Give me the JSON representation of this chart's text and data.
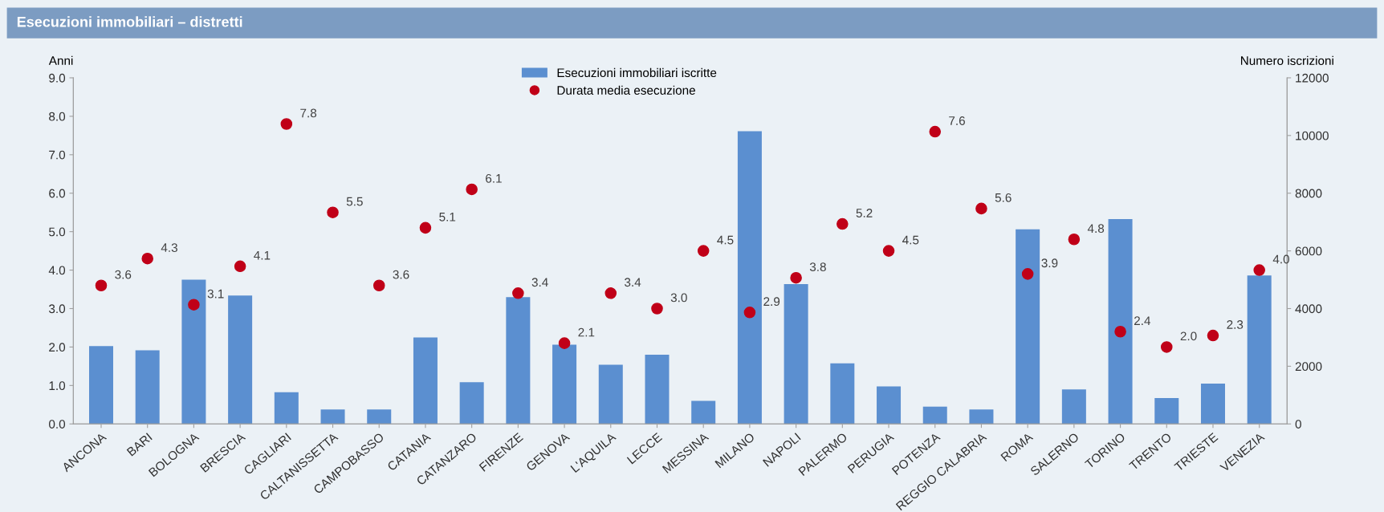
{
  "chart_data": {
    "type": "bar",
    "title": "Esecuzioni immobiliari – distretti",
    "categories": [
      "ANCONA",
      "BARI",
      "BOLOGNA",
      "BRESCIA",
      "CAGLIARI",
      "CALTANISSETTA",
      "CAMPOBASSO",
      "CATANIA",
      "CATANZARO",
      "FIRENZE",
      "GENOVA",
      "L'AQUILA",
      "LECCE",
      "MESSINA",
      "MILANO",
      "NAPOLI",
      "PALERMO",
      "PERUGIA",
      "POTENZA",
      "REGGIO CALABRIA",
      "ROMA",
      "SALERNO",
      "TORINO",
      "TRENTO",
      "TRIESTE",
      "VENEZIA"
    ],
    "series": [
      {
        "name": "Esecuzioni immobiliari iscritte",
        "axis": "y2",
        "color": "#5b8fd0",
        "values": [
          2700,
          2550,
          5000,
          4450,
          1100,
          500,
          500,
          3000,
          1450,
          4400,
          2750,
          2050,
          2400,
          800,
          10150,
          4850,
          2100,
          1300,
          600,
          500,
          6750,
          1200,
          7100,
          900,
          1400,
          5150
        ]
      },
      {
        "name": "Durata media esecuzione",
        "type": "scatter",
        "axis": "y",
        "color": "#c00018",
        "values": [
          3.6,
          4.3,
          3.1,
          4.1,
          7.8,
          5.5,
          3.6,
          5.1,
          6.1,
          3.4,
          2.1,
          3.4,
          3.0,
          4.5,
          2.9,
          3.8,
          5.2,
          4.5,
          7.6,
          5.6,
          3.9,
          4.8,
          2.4,
          2.0,
          2.3,
          4.0
        ],
        "value_labels": [
          "3.6",
          "4.3",
          "3.1",
          "4.1",
          "7.8",
          "5.5",
          "3.6",
          "5.1",
          "6.1",
          "3.4",
          "2.1",
          "3.4",
          "3.0",
          "4.5",
          "2.9",
          "3.8",
          "5.2",
          "4.5",
          "7.6",
          "5.6",
          "3.9",
          "4.8",
          "2.4",
          "2.0",
          "2.3",
          "4.0"
        ]
      }
    ],
    "ylabel": "Anni",
    "y2label": "Numero iscrizioni",
    "ylim": [
      0,
      9
    ],
    "yticks": [
      {
        "value": 0,
        "label": "0.0"
      },
      {
        "value": 1,
        "label": "1.0"
      },
      {
        "value": 2,
        "label": "2.0"
      },
      {
        "value": 3,
        "label": "3.0"
      },
      {
        "value": 4,
        "label": "4.0"
      },
      {
        "value": 5,
        "label": "5.0"
      },
      {
        "value": 6,
        "label": "6.0"
      },
      {
        "value": 7,
        "label": "7.0"
      },
      {
        "value": 8,
        "label": "8.0"
      },
      {
        "value": 9,
        "label": "9.0"
      }
    ],
    "y2lim": [
      0,
      12000
    ],
    "y2ticks": [
      0,
      2000,
      4000,
      6000,
      8000,
      10000,
      12000
    ],
    "legend": "top",
    "grid": false,
    "marker": "circle"
  }
}
